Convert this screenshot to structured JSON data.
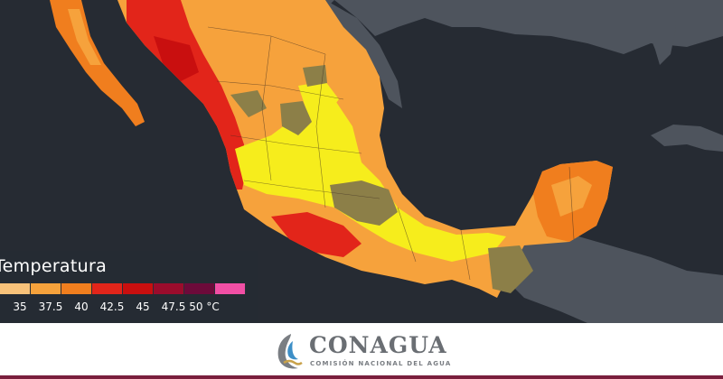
{
  "legend": {
    "title": "Temperatura",
    "unit": "°C",
    "colors": [
      "#f8c27a",
      "#f6a23c",
      "#f07e1e",
      "#e2251a",
      "#c90f0f",
      "#9b0c2c",
      "#6d0a3a",
      "#f24fa5"
    ],
    "ticks": [
      "35",
      "37.5",
      "40",
      "42.5",
      "45",
      "47.5",
      "50"
    ]
  },
  "footer": {
    "brand": "CONAGUA",
    "subtitle": "COMISIÓN NACIONAL DEL AGUA",
    "colors": {
      "brand_text": "#6a6e73",
      "accent": "#7a1f3d"
    }
  },
  "map": {
    "ocean_color": "#262b33",
    "land_outside_color": "#4e545d",
    "heat_colors": {
      "mild": "#f6ed1c",
      "warm": "#f6a23c",
      "hot": "#f07e1e",
      "very_hot": "#e2251a",
      "cool": "#8c7f48"
    }
  }
}
